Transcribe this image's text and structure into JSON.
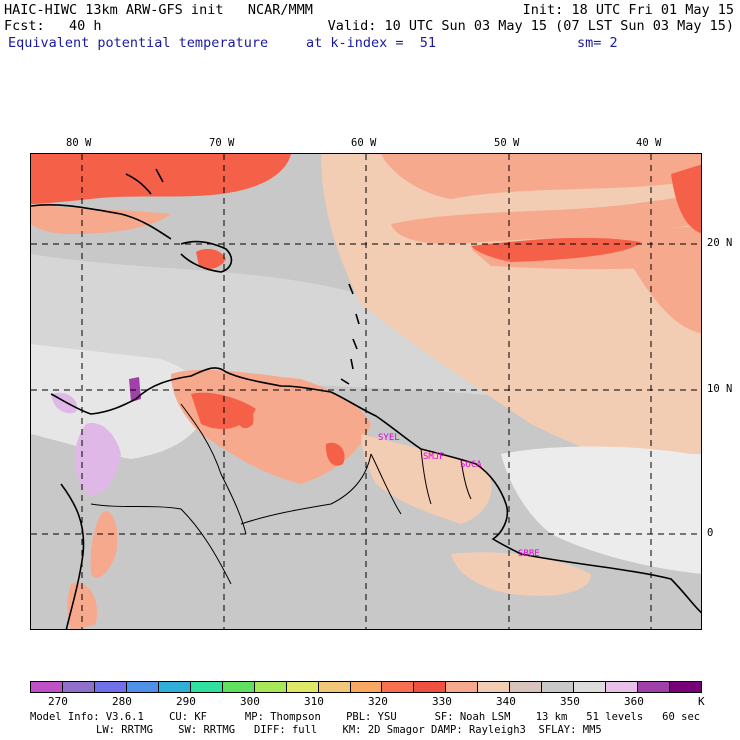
{
  "header": {
    "line1_left": "HAIC-HIWC 13km ARW-GFS init   NCAR/MMM",
    "line1_right": "Init: 18 UTC Fri 01 May 15",
    "line2_left": "Fcst:   40 h",
    "line2_right": "Valid: 10 UTC Sun 03 May 15 (07 LST Sun 03 May 15)",
    "line3_left": "Equivalent potential temperature",
    "line3_mid": "at k-index =  51",
    "line3_right": "sm= 2"
  },
  "map": {
    "lon_labels": [
      "80 W",
      "70 W",
      "60 W",
      "50 W",
      "40 W"
    ],
    "lat_labels": [
      "20 N",
      "10 N",
      "0"
    ],
    "stations": [
      "SYEL",
      "SMJP",
      "SOCA",
      "SBBE"
    ],
    "colors": {
      "bg_gray": "#c8c8c8",
      "light_gray": "#d8d8d8",
      "peach": "#f2cdb4",
      "salmon": "#f7a98d",
      "red": "#f56048",
      "white_area": "#ececec",
      "lavender": "#e0b8e8",
      "purple": "#a040a8"
    }
  },
  "colorbar": {
    "colors": [
      "#c050c8",
      "#9070c8",
      "#7070e8",
      "#5090e8",
      "#30b0d8",
      "#30e0a0",
      "#60e060",
      "#a8e858",
      "#e0e868",
      "#f0c878",
      "#f8a860",
      "#f87050",
      "#f05040",
      "#f7a98d",
      "#f2cdb4",
      "#d8c4bc",
      "#c8c8c8",
      "#dcdcdc",
      "#e8c0e8",
      "#a040a8",
      "#780078"
    ],
    "labels": [
      "270",
      "280",
      "290",
      "300",
      "310",
      "320",
      "330",
      "340",
      "350",
      "360",
      "K"
    ]
  },
  "footer": {
    "line1": "Model Info: V3.6.1    CU: KF      MP: Thompson    PBL: YSU      SF: Noah LSM    13 km   51 levels   60 sec",
    "line2": "LW: RRTMG    SW: RRTMG   DIFF: full    KM: 2D Smagor DAMP: Rayleigh3  SFLAY: MM5"
  }
}
